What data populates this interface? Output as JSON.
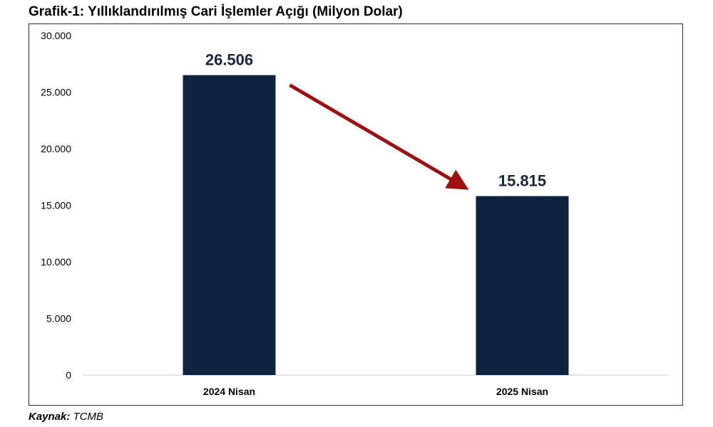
{
  "title": "Grafik-1: Yıllıklandırılmış Cari İşlemler Açığı (Milyon Dolar)",
  "source": {
    "label": "Kaynak:",
    "value": "TCMB"
  },
  "colors": {
    "bar": "#0f2341",
    "arrow": "#a01010",
    "frame": "#1f2d5a",
    "axis": "#c8c8c8"
  },
  "chart_data": {
    "type": "bar",
    "title": "Grafik-1: Yıllıklandırılmış Cari İşlemler Açığı (Milyon Dolar)",
    "xlabel": "",
    "ylabel": "",
    "categories": [
      "2024 Nisan",
      "2025 Nisan"
    ],
    "values": [
      26506,
      15815
    ],
    "data_labels": [
      "26.506",
      "15.815"
    ],
    "yticks": [
      0,
      5000,
      10000,
      15000,
      20000,
      25000,
      30000
    ],
    "ytick_labels": [
      "0",
      "5.000",
      "10.000",
      "15.000",
      "20.000",
      "25.000",
      "30.000"
    ],
    "ylim": [
      0,
      30000
    ],
    "grid": false,
    "legend": "none",
    "annotation": "arrow-down-from-first-to-second-bar"
  }
}
